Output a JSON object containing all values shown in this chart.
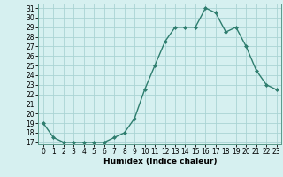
{
  "x": [
    0,
    1,
    2,
    3,
    4,
    5,
    6,
    7,
    8,
    9,
    10,
    11,
    12,
    13,
    14,
    15,
    16,
    17,
    18,
    19,
    20,
    21,
    22,
    23
  ],
  "y": [
    19,
    17.5,
    17,
    17,
    17,
    17,
    17,
    17.5,
    18,
    19.5,
    22.5,
    25,
    27.5,
    29,
    29,
    29,
    31,
    30.5,
    28.5,
    29,
    27,
    24.5,
    23,
    22.5
  ],
  "line_color": "#2e7d6e",
  "marker": "D",
  "marker_size": 2.0,
  "bg_color": "#d6f0f0",
  "grid_color": "#aad4d4",
  "xlabel": "Humidex (Indice chaleur)",
  "xlim": [
    -0.5,
    23.5
  ],
  "ylim": [
    16.8,
    31.5
  ],
  "yticks": [
    17,
    18,
    19,
    20,
    21,
    22,
    23,
    24,
    25,
    26,
    27,
    28,
    29,
    30,
    31
  ],
  "xticks": [
    0,
    1,
    2,
    3,
    4,
    5,
    6,
    7,
    8,
    9,
    10,
    11,
    12,
    13,
    14,
    15,
    16,
    17,
    18,
    19,
    20,
    21,
    22,
    23
  ],
  "xlabel_fontsize": 6.5,
  "tick_fontsize": 5.5,
  "line_width": 1.0,
  "spine_color": "#5a9a8a"
}
